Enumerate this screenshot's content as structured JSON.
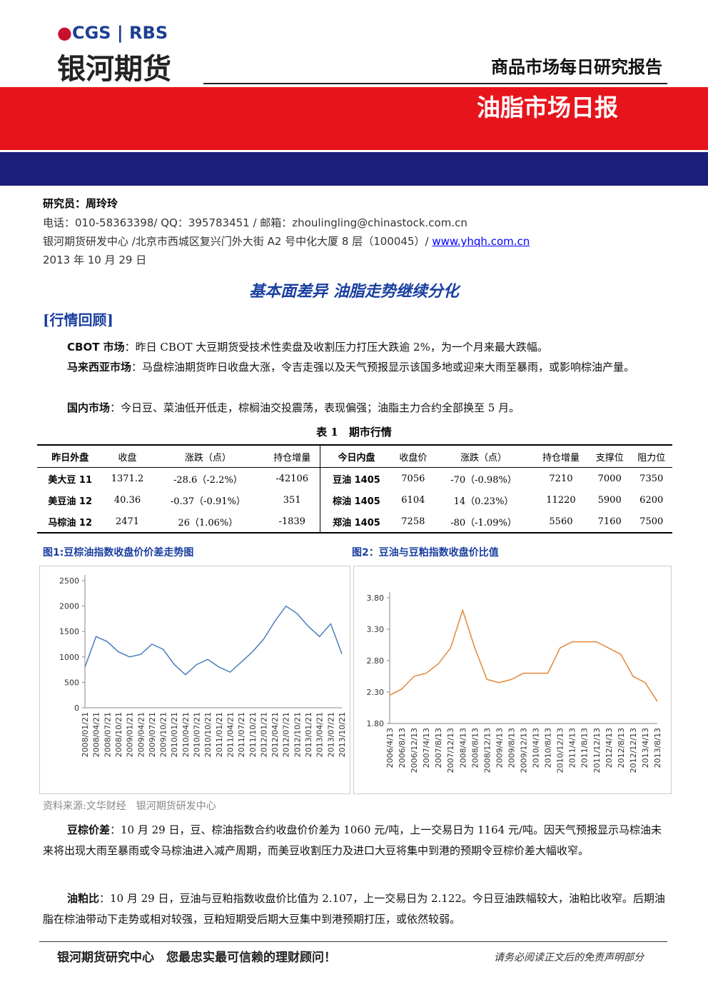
{
  "header": {
    "logo_left": "CGS",
    "logo_right": "RBS",
    "company": "银河期货",
    "report_type": "商品市场每日研究报告",
    "title": "油脂市场日报"
  },
  "meta": {
    "researcher_label": "研究员：",
    "researcher": "周玲玲",
    "contact": "电话：010-58363398/ QQ：395783451 / 邮箱：zhoulingling@chinastock.com.cn",
    "address": "银河期货研发中心 /北京市西城区复兴门外大街 A2 号中化大厦 8 层（100045）/ ",
    "website": "www.yhqh.com.cn",
    "date": "2013 年 10 月 29 日"
  },
  "headline": "基本面差异 油脂走势继续分化",
  "section": "[行情回顾]",
  "paragraphs": [
    {
      "label": "CBOT 市场",
      "text": "：昨日 CBOT 大豆期货受技术性卖盘及收割压力打压大跌逾 2%，为一个月来最大跌幅。"
    },
    {
      "label": "马来西亚市场",
      "text": "：马盘棕油期货昨日收盘大涨，令吉走强以及天气预报显示该国多地或迎来大雨至暴雨，或影响棕油产量。"
    },
    {
      "label": "国内市场",
      "text": "：今日豆、菜油低开低走，棕榈油交投震荡，表现偏强；油脂主力合约全部换至 5 月。"
    }
  ],
  "table": {
    "caption": "表 1　期市行情",
    "header": [
      "昨日外盘",
      "收盘",
      "涨跌（点）",
      "持仓增量",
      "今日内盘",
      "收盘价",
      "涨跌（点）",
      "持仓增量",
      "支撑位",
      "阻力位"
    ],
    "rows": [
      [
        "美大豆 11",
        "1371.2",
        "-28.6（-2.2%）",
        "-42106",
        "豆油 1405",
        "7056",
        "-70（-0.98%）",
        "7210",
        "7000",
        "7350"
      ],
      [
        "美豆油 12",
        "40.36",
        "-0.37（-0.91%）",
        "351",
        "棕油 1405",
        "6104",
        "14（0.23%）",
        "11220",
        "5900",
        "6200"
      ],
      [
        "马棕油 12",
        "2471",
        "26（1.06%）",
        "-1839",
        "郑油 1405",
        "7258",
        "-80（-1.09%）",
        "5560",
        "7160",
        "7500"
      ]
    ]
  },
  "chart_data": [
    {
      "type": "line",
      "title": "图1:豆棕油指数收盘价价差走势图",
      "color": "#4a7ebb",
      "categories": [
        "2008/01/21",
        "2008/04/21",
        "2008/07/21",
        "2008/10/21",
        "2009/01/21",
        "2009/04/21",
        "2009/07/21",
        "2009/10/21",
        "2010/01/21",
        "2010/04/21",
        "2010/07/21",
        "2010/10/21",
        "2011/01/21",
        "2011/04/21",
        "2011/07/21",
        "2011/10/21",
        "2012/01/21",
        "2012/04/21",
        "2012/07/21",
        "2012/10/21",
        "2013/01/21",
        "2013/04/21",
        "2013/07/21",
        "2013/10/21"
      ],
      "values": [
        800,
        1400,
        1300,
        1100,
        1000,
        1050,
        1250,
        1150,
        850,
        650,
        850,
        950,
        800,
        700,
        900,
        1100,
        1350,
        1700,
        2000,
        1850,
        1600,
        1400,
        1650,
        1060
      ],
      "ylim": [
        0,
        2500
      ],
      "yticks": [
        0,
        500,
        1000,
        1500,
        2000,
        2500
      ]
    },
    {
      "type": "line",
      "title": "图2：豆油与豆粕指数收盘价比值",
      "color": "#e0883a",
      "categories": [
        "2006/4/13",
        "2006/8/13",
        "2006/12/13",
        "2007/4/13",
        "2007/8/13",
        "2007/12/13",
        "2008/4/13",
        "2008/8/13",
        "2008/12/13",
        "2009/4/13",
        "2009/8/13",
        "2009/12/13",
        "2010/4/13",
        "2010/8/13",
        "2010/12/13",
        "2011/4/13",
        "2011/8/13",
        "2011/12/13",
        "2012/4/13",
        "2012/8/13",
        "2012/12/13",
        "2013/4/13",
        "2013/8/13"
      ],
      "values": [
        2.25,
        2.35,
        2.55,
        2.6,
        2.75,
        3.0,
        3.6,
        3.0,
        2.5,
        2.45,
        2.5,
        2.6,
        2.6,
        2.6,
        3.0,
        3.1,
        3.1,
        3.1,
        3.0,
        2.9,
        2.55,
        2.45,
        2.15
      ],
      "ylim": [
        1.8,
        3.8
      ],
      "yticks": [
        {
          "value": 1.8,
          "label": "1.80"
        },
        {
          "value": 2.3,
          "label": "2.30"
        },
        {
          "value": 2.8,
          "label": "2.80"
        },
        {
          "value": 3.3,
          "label": "3.30"
        },
        {
          "value": 3.8,
          "label": "3.80"
        }
      ]
    }
  ],
  "source": "资料来源:文华财经　银河期货研发中心",
  "paragraphs2": [
    {
      "label": "豆棕价差",
      "text": "：10 月 29 日，豆、棕油指数合约收盘价价差为 1060 元/吨，上一交易日为 1164 元/吨。因天气预报显示马棕油未来将出现大雨至暴雨或令马棕油进入减产周期，而美豆收割压力及进口大豆将集中到港的预期令豆棕价差大幅收窄。"
    },
    {
      "label": "油粕比",
      "text": "：10 月 29 日，豆油与豆粕指数收盘价比值为 2.107，上一交易日为 2.122。今日豆油跌幅较大，油粕比收窄。后期油脂在棕油带动下走势或相对较强，豆粕短期受后期大豆集中到港预期打压，或依然较弱。"
    }
  ],
  "footer": {
    "left": "银河期货研究中心　您最忠实最可信赖的理财顾问！",
    "right": "请务必阅读正文后的免责声明部分"
  }
}
